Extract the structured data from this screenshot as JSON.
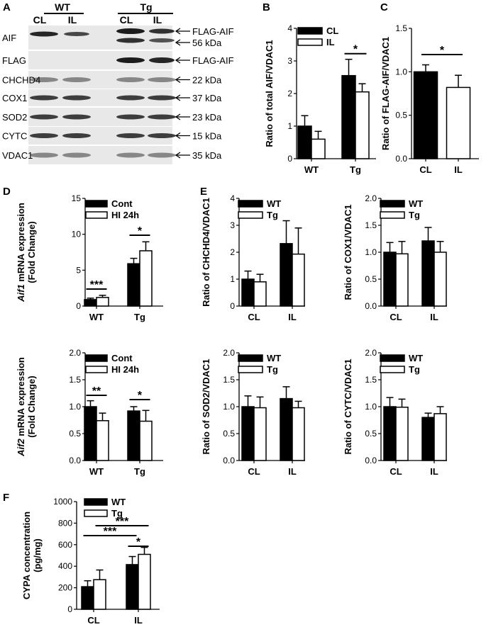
{
  "panel_letters": {
    "A": "A",
    "B": "B",
    "C": "C",
    "D": "D",
    "E": "E",
    "F": "F"
  },
  "blot": {
    "groups": [
      "WT",
      "Tg"
    ],
    "lanes": [
      "CL",
      "IL",
      "CL",
      "IL"
    ],
    "rows": [
      {
        "label": "AIF",
        "right": [
          "FLAG-AIF",
          "56 kDa"
        ]
      },
      {
        "label": "FLAG",
        "right": [
          "FLAG-AIF"
        ]
      },
      {
        "label": "CHCHD4",
        "right": [
          "22 kDa"
        ]
      },
      {
        "label": "COX1",
        "right": [
          "37 kDa"
        ]
      },
      {
        "label": "SOD2",
        "right": [
          "23 kDa"
        ]
      },
      {
        "label": "CYTC",
        "right": [
          "15 kDa"
        ]
      },
      {
        "label": "VDAC1",
        "right": [
          "35 kDa"
        ]
      }
    ]
  },
  "colors": {
    "filled": "#000000",
    "open": "#ffffff",
    "stroke": "#000000"
  },
  "chart_data": [
    {
      "id": "B",
      "type": "bar",
      "categories": [
        "WT",
        "Tg"
      ],
      "series": [
        {
          "name": "CL",
          "values": [
            1.0,
            2.55
          ],
          "errors": [
            0.32,
            0.5
          ]
        },
        {
          "name": "IL",
          "values": [
            0.6,
            2.05
          ],
          "errors": [
            0.24,
            0.25
          ]
        }
      ],
      "ylabel": "Ratio of total AIF/VDAC1",
      "ylim": [
        0,
        4
      ],
      "yticks": [
        "0",
        "1",
        "2",
        "3",
        "4"
      ],
      "sig": [
        {
          "label": "*",
          "cat": 1
        }
      ]
    },
    {
      "id": "C",
      "type": "bar",
      "categories": [
        "CL",
        "IL"
      ],
      "values": [
        1.0,
        0.82
      ],
      "errors": [
        0.08,
        0.14
      ],
      "ylabel": "Ratio of FLAG-AIF/VDAC1",
      "ylim": [
        0,
        1.5
      ],
      "yticks": [
        "0.0",
        "0.5",
        "1.0",
        "1.5"
      ],
      "sig": [
        {
          "label": "*"
        }
      ]
    },
    {
      "id": "D1",
      "type": "bar",
      "categories": [
        "WT",
        "Tg"
      ],
      "series": [
        {
          "name": "Cont",
          "values": [
            0.9,
            5.9
          ],
          "errors": [
            0.2,
            0.75
          ]
        },
        {
          "name": "HI 24h",
          "values": [
            1.2,
            7.7
          ],
          "errors": [
            0.3,
            1.25
          ]
        }
      ],
      "ylabel_italic": "Aif1",
      "ylabel": " mRNA expression",
      "ylabel2": "(Fold Change)",
      "ylim": [
        0,
        15
      ],
      "yticks": [
        "0",
        "5",
        "10",
        "15"
      ],
      "sig": [
        {
          "label": "***",
          "cat": 0
        },
        {
          "label": "*",
          "cat": 1
        }
      ]
    },
    {
      "id": "D2",
      "type": "bar",
      "categories": [
        "WT",
        "Tg"
      ],
      "series": [
        {
          "name": "Cont",
          "values": [
            1.0,
            0.92
          ],
          "errors": [
            0.11,
            0.08
          ]
        },
        {
          "name": "HI 24h",
          "values": [
            0.74,
            0.73
          ],
          "errors": [
            0.14,
            0.2
          ]
        }
      ],
      "ylabel_italic": "Aif2",
      "ylabel": " mRNA expression",
      "ylabel2": "(Fold Change)",
      "ylim": [
        0,
        2.0
      ],
      "yticks": [
        "0.0",
        "0.5",
        "1.0",
        "1.5",
        "2.0"
      ],
      "sig": [
        {
          "label": "**",
          "cat": 0
        },
        {
          "label": "*",
          "cat": 1
        }
      ]
    },
    {
      "id": "E1",
      "type": "bar",
      "categories": [
        "CL",
        "IL"
      ],
      "series": [
        {
          "name": "WT",
          "values": [
            1.0,
            2.32
          ],
          "errors": [
            0.3,
            0.85
          ]
        },
        {
          "name": "Tg",
          "values": [
            0.9,
            1.93
          ],
          "errors": [
            0.28,
            0.97
          ]
        }
      ],
      "ylabel": "Ratio of CHCHD4/VDAC1",
      "ylim": [
        0,
        4
      ],
      "yticks": [
        "0",
        "1",
        "2",
        "3",
        "4"
      ]
    },
    {
      "id": "E2",
      "type": "bar",
      "categories": [
        "CL",
        "IL"
      ],
      "series": [
        {
          "name": "WT",
          "values": [
            1.0,
            1.21
          ],
          "errors": [
            0.18,
            0.25
          ]
        },
        {
          "name": "Tg",
          "values": [
            0.97,
            1.0
          ],
          "errors": [
            0.23,
            0.2
          ]
        }
      ],
      "ylabel": "Ratio of COX1/VDAC1",
      "ylim": [
        0,
        2.0
      ],
      "yticks": [
        "0.0",
        "0.5",
        "1.0",
        "1.5",
        "2.0"
      ]
    },
    {
      "id": "E3",
      "type": "bar",
      "categories": [
        "CL",
        "IL"
      ],
      "series": [
        {
          "name": "WT",
          "values": [
            1.0,
            1.15
          ],
          "errors": [
            0.2,
            0.22
          ]
        },
        {
          "name": "Tg",
          "values": [
            0.98,
            0.98
          ],
          "errors": [
            0.2,
            0.12
          ]
        }
      ],
      "ylabel": "Ratio of SOD2/VDAC1",
      "ylim": [
        0,
        2.0
      ],
      "yticks": [
        "0.0",
        "0.5",
        "1.0",
        "1.5",
        "2.0"
      ]
    },
    {
      "id": "E4",
      "type": "bar",
      "categories": [
        "CL",
        "IL"
      ],
      "series": [
        {
          "name": "WT",
          "values": [
            1.0,
            0.8
          ],
          "errors": [
            0.17,
            0.08
          ]
        },
        {
          "name": "Tg",
          "values": [
            0.99,
            0.87
          ],
          "errors": [
            0.15,
            0.13
          ]
        }
      ],
      "ylabel": "Ratio of CYTC/VDAC1",
      "ylim": [
        0,
        2.0
      ],
      "yticks": [
        "0.0",
        "0.5",
        "1.0",
        "1.5",
        "2.0"
      ]
    },
    {
      "id": "F",
      "type": "bar",
      "categories": [
        "CL",
        "IL"
      ],
      "series": [
        {
          "name": "WT",
          "values": [
            210,
            415
          ],
          "errors": [
            55,
            75
          ]
        },
        {
          "name": "Tg",
          "values": [
            275,
            510
          ],
          "errors": [
            90,
            65
          ]
        }
      ],
      "ylabel": "CYPA concentration",
      "ylabel2": "(pg/mg)",
      "ylim": [
        0,
        1000
      ],
      "yticks": [
        "0",
        "200",
        "400",
        "600",
        "800",
        "1000"
      ],
      "sig": [
        {
          "label": "***",
          "from": [
            0,
            0
          ],
          "to": [
            1,
            0
          ]
        },
        {
          "label": "***",
          "from": [
            0,
            1
          ],
          "to": [
            1,
            1
          ]
        },
        {
          "label": "*",
          "from": [
            1,
            0
          ],
          "to": [
            1,
            1
          ]
        }
      ]
    }
  ]
}
